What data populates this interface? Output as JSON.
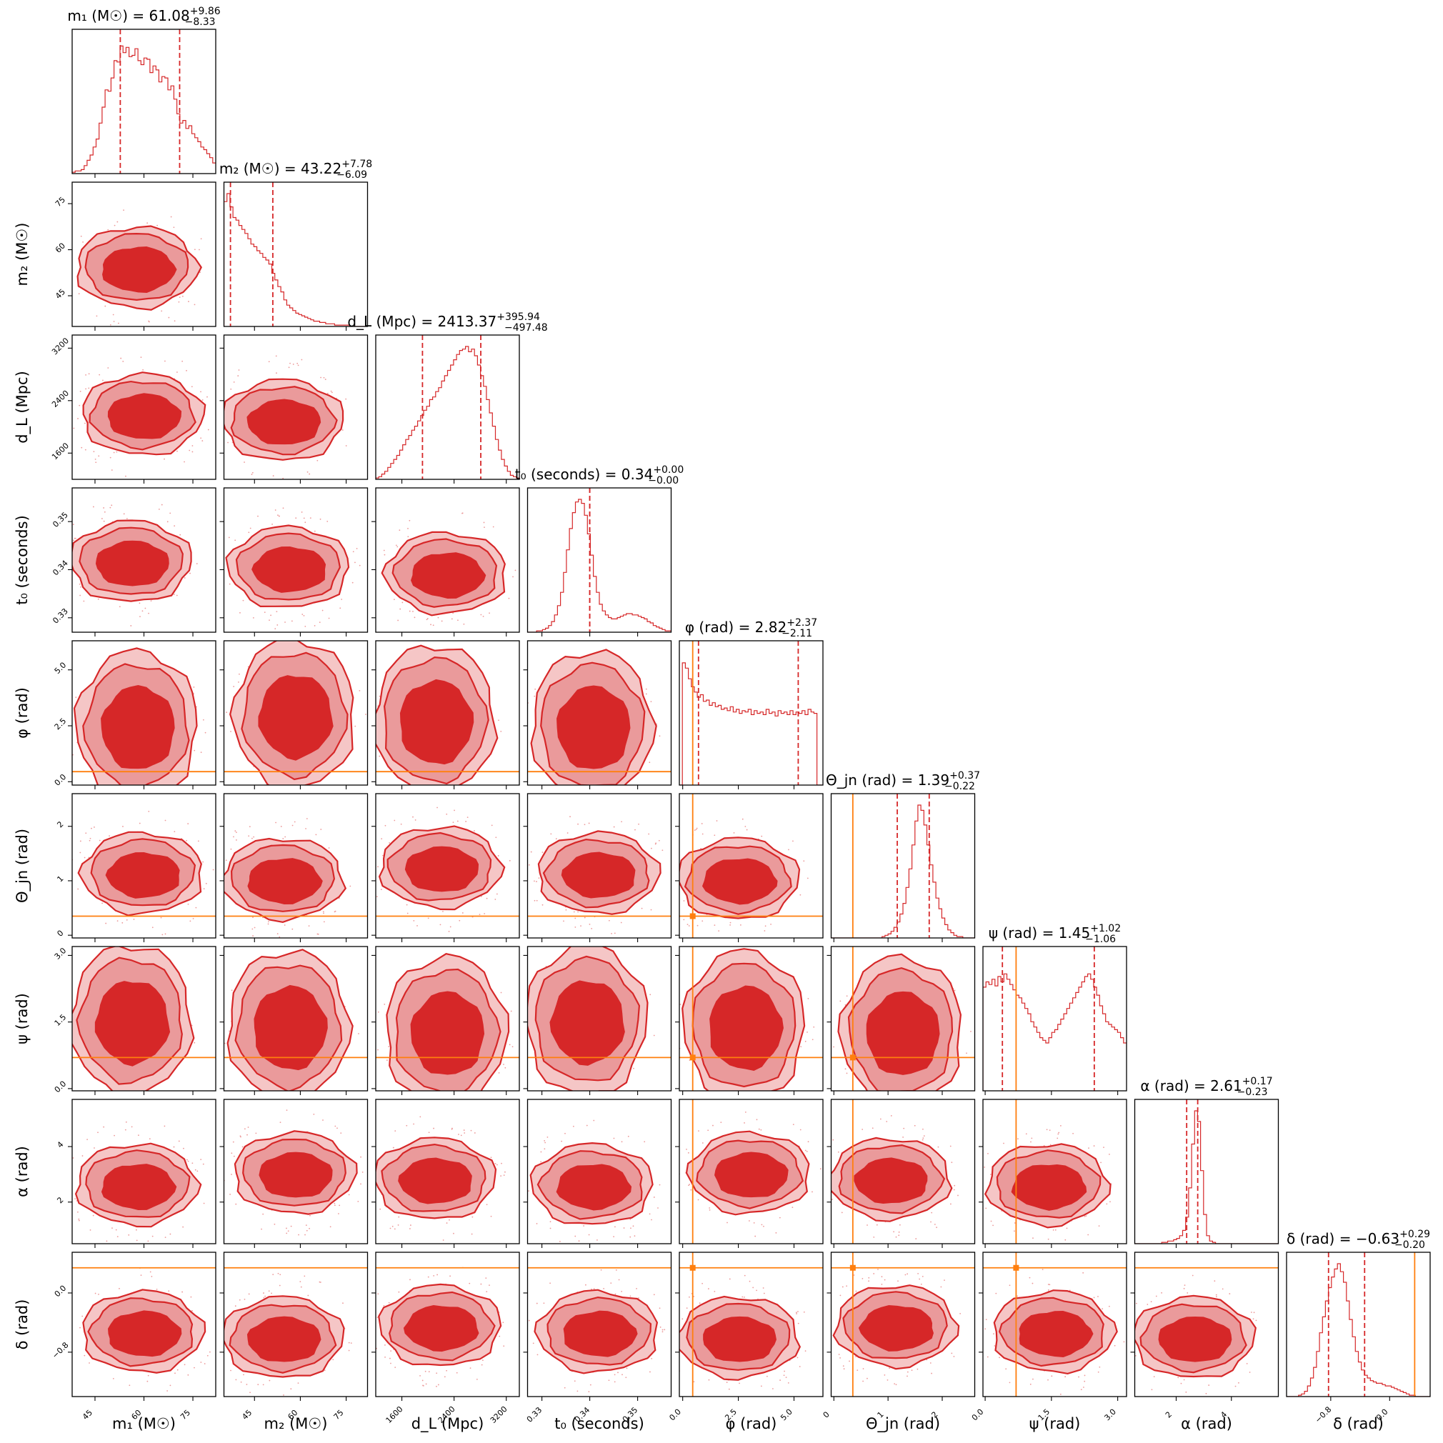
{
  "chart_data": {
    "type": "corner",
    "n_params": 9,
    "colors": {
      "posterior": "#d62728",
      "truth": "#ff7f0e"
    },
    "parameters": [
      {
        "key": "m1",
        "label": "m₁ (M☉)",
        "title": "m₁ (M☉) = 61.08",
        "median": 61.08,
        "err_plus": 9.86,
        "err_minus": 8.33,
        "sup": "+9.86",
        "sub": "−8.33",
        "range": [
          38,
          82
        ],
        "ticks": [
          45,
          60,
          75
        ],
        "tick_labels": [
          "45",
          "60",
          "75"
        ],
        "hist": [
          0.01,
          0.02,
          0.02,
          0.03,
          0.06,
          0.1,
          0.14,
          0.2,
          0.26,
          0.38,
          0.5,
          0.63,
          0.62,
          0.72,
          0.85,
          0.84,
          0.96,
          0.91,
          0.95,
          0.88,
          0.89,
          0.94,
          0.85,
          0.82,
          0.87,
          0.86,
          0.76,
          0.81,
          0.78,
          0.69,
          0.73,
          0.72,
          0.63,
          0.66,
          0.56,
          0.45,
          0.38,
          0.4,
          0.34,
          0.36,
          0.3,
          0.27,
          0.24,
          0.2,
          0.18,
          0.15,
          0.12,
          0.08
        ],
        "truth": null
      },
      {
        "key": "m2",
        "label": "m₂ (M☉)",
        "title": "m₂ (M☉) = 43.22",
        "median": 43.22,
        "err_plus": 7.78,
        "err_minus": 6.09,
        "sup": "+7.78",
        "sub": "−6.09",
        "range": [
          35,
          82
        ],
        "ticks": [
          45,
          60,
          75
        ],
        "tick_labels": [
          "45",
          "60",
          "75"
        ],
        "hist": [
          0.94,
          1.0,
          0.9,
          0.82,
          0.8,
          0.76,
          0.73,
          0.7,
          0.66,
          0.62,
          0.6,
          0.57,
          0.55,
          0.52,
          0.5,
          0.47,
          0.4,
          0.35,
          0.3,
          0.26,
          0.2,
          0.16,
          0.14,
          0.12,
          0.1,
          0.09,
          0.08,
          0.07,
          0.06,
          0.05,
          0.04,
          0.04,
          0.03,
          0.03,
          0.02,
          0.02,
          0.02,
          0.01,
          0.01,
          0.01,
          0.01,
          0.01,
          0.0,
          0.0,
          0.0,
          0.0,
          0.0,
          0.0
        ],
        "truth": null
      },
      {
        "key": "dL",
        "label": "d_L (Mpc)",
        "title": "d_L (Mpc) = 2413.37",
        "median": 2413.37,
        "err_plus": 395.94,
        "err_minus": 497.48,
        "sup": "+395.94",
        "sub": "−497.48",
        "range": [
          1200,
          3400
        ],
        "ticks": [
          1600,
          2400,
          3200
        ],
        "tick_labels": [
          "1600",
          "2400",
          "3200"
        ],
        "hist": [
          0.01,
          0.02,
          0.04,
          0.06,
          0.09,
          0.12,
          0.15,
          0.18,
          0.22,
          0.26,
          0.3,
          0.33,
          0.37,
          0.4,
          0.44,
          0.48,
          0.52,
          0.55,
          0.6,
          0.62,
          0.66,
          0.69,
          0.74,
          0.78,
          0.82,
          0.86,
          0.9,
          0.94,
          0.97,
          0.98,
          1.0,
          0.96,
          0.98,
          0.93,
          0.86,
          0.78,
          0.7,
          0.6,
          0.5,
          0.4,
          0.3,
          0.22,
          0.15,
          0.1,
          0.06,
          0.03,
          0.02,
          0.01
        ],
        "truth": null
      },
      {
        "key": "t0",
        "label": "t₀ (seconds)",
        "title": "t₀ (seconds) = 0.34",
        "median": 0.34,
        "err_plus": 0.0,
        "err_minus": 0.0,
        "sup": "+0.00",
        "sub": "−0.00",
        "range": [
          0.327,
          0.357
        ],
        "ticks": [
          0.33,
          0.34,
          0.35
        ],
        "tick_labels": [
          "0.33",
          "0.34",
          "0.35"
        ],
        "hist": [
          0.0,
          0.0,
          0.0,
          0.01,
          0.01,
          0.02,
          0.03,
          0.05,
          0.08,
          0.13,
          0.2,
          0.3,
          0.45,
          0.62,
          0.78,
          0.9,
          0.98,
          1.0,
          0.97,
          0.88,
          0.74,
          0.58,
          0.42,
          0.3,
          0.21,
          0.16,
          0.13,
          0.11,
          0.1,
          0.1,
          0.11,
          0.12,
          0.13,
          0.14,
          0.14,
          0.13,
          0.13,
          0.12,
          0.11,
          0.1,
          0.08,
          0.07,
          0.05,
          0.04,
          0.03,
          0.02,
          0.01,
          0.01
        ],
        "truth": null
      },
      {
        "key": "phi",
        "label": "φ (rad)",
        "title": "φ (rad) = 2.82",
        "median": 2.82,
        "err_plus": 2.37,
        "err_minus": 2.11,
        "sup": "+2.37",
        "sub": "−2.11",
        "range": [
          -0.15,
          6.3
        ],
        "ticks": [
          0.0,
          2.5,
          5.0
        ],
        "tick_labels": [
          "0.0",
          "2.5",
          "5.0"
        ],
        "hist": [
          0.0,
          0.92,
          0.88,
          0.8,
          0.74,
          0.7,
          0.66,
          0.68,
          0.63,
          0.64,
          0.6,
          0.62,
          0.59,
          0.6,
          0.57,
          0.58,
          0.56,
          0.59,
          0.55,
          0.57,
          0.54,
          0.56,
          0.55,
          0.57,
          0.53,
          0.56,
          0.54,
          0.55,
          0.53,
          0.57,
          0.54,
          0.55,
          0.52,
          0.56,
          0.54,
          0.55,
          0.53,
          0.56,
          0.53,
          0.55,
          0.54,
          0.56,
          0.53,
          0.57,
          0.55,
          0.54,
          0.0,
          0.0
        ],
        "truth": 0.45
      },
      {
        "key": "theta_jn",
        "label": "Θ_jn (rad)",
        "title": "Θ_jn (rad) = 1.39",
        "median": 1.39,
        "err_plus": 0.37,
        "err_minus": 0.22,
        "sup": "+0.37",
        "sub": "−0.22",
        "range": [
          -0.05,
          2.6
        ],
        "ticks": [
          0,
          1,
          2
        ],
        "tick_labels": [
          "0",
          "1",
          "2"
        ],
        "hist": [
          0.0,
          0.0,
          0.0,
          0.0,
          0.0,
          0.0,
          0.0,
          0.0,
          0.0,
          0.0,
          0.0,
          0.0,
          0.0,
          0.0,
          0.0,
          0.0,
          0.0,
          0.01,
          0.02,
          0.03,
          0.05,
          0.08,
          0.12,
          0.18,
          0.26,
          0.38,
          0.52,
          0.7,
          0.88,
          1.0,
          0.96,
          0.85,
          0.7,
          0.55,
          0.42,
          0.3,
          0.22,
          0.15,
          0.1,
          0.06,
          0.04,
          0.02,
          0.01,
          0.01,
          0.0,
          0.0,
          0.0,
          0.0
        ],
        "truth": 0.35
      },
      {
        "key": "psi",
        "label": "ψ (rad)",
        "title": "ψ (rad) = 1.45",
        "median": 1.45,
        "err_plus": 1.02,
        "err_minus": 1.06,
        "sup": "+1.02",
        "sub": "−1.06",
        "range": [
          -0.05,
          3.2
        ],
        "ticks": [
          0.0,
          1.5,
          3.0
        ],
        "tick_labels": [
          "0.0",
          "1.5",
          "3.0"
        ],
        "hist": [
          0.78,
          0.82,
          0.8,
          0.84,
          0.79,
          0.86,
          0.82,
          0.88,
          0.84,
          0.8,
          0.76,
          0.72,
          0.7,
          0.66,
          0.62,
          0.58,
          0.52,
          0.48,
          0.44,
          0.4,
          0.38,
          0.36,
          0.4,
          0.44,
          0.46,
          0.5,
          0.54,
          0.58,
          0.62,
          0.66,
          0.7,
          0.74,
          0.78,
          0.82,
          0.86,
          0.88,
          0.84,
          0.78,
          0.72,
          0.64,
          0.58,
          0.52,
          0.5,
          0.48,
          0.46,
          0.44,
          0.4,
          0.36
        ],
        "truth": 0.7
      },
      {
        "key": "alpha",
        "label": "α (rad)",
        "title": "α (rad) = 2.61",
        "median": 2.61,
        "err_plus": 0.17,
        "err_minus": 0.23,
        "sup": "+0.17",
        "sub": "−0.23",
        "range": [
          0.5,
          5.7
        ],
        "ticks": [
          2,
          4
        ],
        "tick_labels": [
          "2",
          "4"
        ],
        "hist": [
          0.0,
          0.0,
          0.0,
          0.0,
          0.0,
          0.0,
          0.0,
          0.0,
          0.0,
          0.01,
          0.01,
          0.02,
          0.02,
          0.03,
          0.04,
          0.06,
          0.1,
          0.2,
          0.42,
          0.75,
          1.0,
          0.92,
          0.55,
          0.22,
          0.06,
          0.02,
          0.01,
          0.0,
          0.0,
          0.0,
          0.0,
          0.0,
          0.0,
          0.0,
          0.0,
          0.0,
          0.0,
          0.0,
          0.0,
          0.0,
          0.0,
          0.0,
          0.0,
          0.0,
          0.0,
          0.0,
          0.0,
          0.0
        ],
        "truth": null
      },
      {
        "key": "delta",
        "label": "δ (rad)",
        "title": "δ (rad) = −0.63",
        "median": -0.63,
        "err_plus": 0.29,
        "err_minus": 0.2,
        "sup": "+0.29",
        "sub": "−0.20",
        "range": [
          -1.4,
          0.55
        ],
        "ticks": [
          -0.8,
          0.0
        ],
        "tick_labels": [
          "−0.8",
          "0.0"
        ],
        "hist": [
          0.0,
          0.0,
          0.0,
          0.0,
          0.01,
          0.02,
          0.04,
          0.08,
          0.14,
          0.22,
          0.34,
          0.48,
          0.6,
          0.72,
          0.82,
          0.9,
          0.96,
          1.0,
          0.94,
          0.86,
          0.72,
          0.58,
          0.45,
          0.34,
          0.26,
          0.2,
          0.16,
          0.14,
          0.12,
          0.11,
          0.1,
          0.1,
          0.09,
          0.08,
          0.08,
          0.07,
          0.06,
          0.05,
          0.04,
          0.03,
          0.02,
          0.01,
          0.01,
          0.0,
          0.0,
          0.0,
          0.0,
          0.0
        ],
        "truth": 0.34
      }
    ]
  }
}
